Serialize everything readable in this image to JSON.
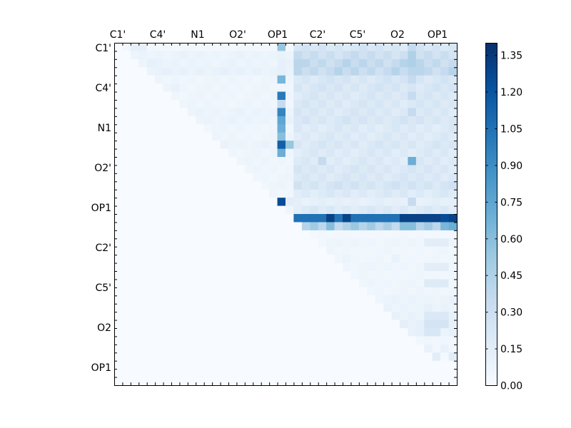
{
  "chart_data": {
    "type": "heatmap",
    "title": "",
    "xlabel": "",
    "ylabel": "",
    "x_tick_labels": [
      "C1'",
      "C4'",
      "N1",
      "O2'",
      "OP1",
      "C2'",
      "C5'",
      "O2",
      "OP1"
    ],
    "y_tick_labels": [
      "C1'",
      "C4'",
      "N1",
      "O2'",
      "OP1",
      "C2'",
      "C5'",
      "O2",
      "OP1"
    ],
    "grid_size": 42,
    "colormap": "Blues",
    "colorbar": {
      "range": [
        0.0,
        1.4
      ],
      "tick_labels": [
        "0.00",
        "0.15",
        "0.30",
        "0.45",
        "0.60",
        "0.75",
        "0.90",
        "1.05",
        "1.20",
        "1.35"
      ],
      "ticks": [
        0.0,
        0.15,
        0.3,
        0.45,
        0.6,
        0.75,
        0.9,
        1.05,
        1.2,
        1.35
      ]
    },
    "matrix_description": "upper-triangular; lower triangle = 0",
    "row_profiles": [
      {
        "row": 0,
        "base": 0.04,
        "right": 0.22,
        "peaks": {
          "2": 0.12,
          "3": 0.12,
          "20": 0.55,
          "36": 0.35
        }
      },
      {
        "row": 1,
        "base": 0.08,
        "right": 0.3,
        "peaks": {
          "20": 0.1,
          "36": 0.45
        }
      },
      {
        "row": 2,
        "base": 0.08,
        "right": 0.35,
        "peaks": {
          "4": 0.12,
          "5": 0.1,
          "20": 0.12,
          "22": 0.4,
          "36": 0.45
        }
      },
      {
        "row": 3,
        "base": 0.1,
        "right": 0.35,
        "peaks": {
          "6": 0.12,
          "20": 0.12,
          "37": 0.4
        }
      },
      {
        "row": 4,
        "base": 0.06,
        "right": 0.22,
        "peaks": {
          "20": 0.65,
          "36": 0.35
        }
      },
      {
        "row": 5,
        "base": 0.06,
        "right": 0.22,
        "peaks": {
          "7": 0.1,
          "20": 0.05
        }
      },
      {
        "row": 6,
        "base": 0.06,
        "right": 0.2,
        "peaks": {
          "20": 1.0,
          "36": 0.35
        }
      },
      {
        "row": 7,
        "base": 0.06,
        "right": 0.2,
        "peaks": {
          "20": 0.35
        }
      },
      {
        "row": 8,
        "base": 0.08,
        "right": 0.2,
        "peaks": {
          "20": 0.95,
          "36": 0.35
        }
      },
      {
        "row": 9,
        "base": 0.08,
        "right": 0.22,
        "peaks": {
          "20": 0.75
        }
      },
      {
        "row": 10,
        "base": 0.06,
        "right": 0.18,
        "peaks": {
          "20": 0.7
        }
      },
      {
        "row": 11,
        "base": 0.06,
        "right": 0.18,
        "peaks": {
          "20": 0.6
        }
      },
      {
        "row": 12,
        "base": 0.08,
        "right": 0.2,
        "peaks": {
          "20": 1.15,
          "21": 0.55
        }
      },
      {
        "row": 13,
        "base": 0.06,
        "right": 0.18,
        "peaks": {
          "20": 0.7
        }
      },
      {
        "row": 14,
        "base": 0.06,
        "right": 0.18,
        "peaks": {
          "25": 0.35,
          "36": 0.7
        }
      },
      {
        "row": 15,
        "base": 0.06,
        "right": 0.2,
        "peaks": {}
      },
      {
        "row": 16,
        "base": 0.06,
        "right": 0.2,
        "peaks": {}
      },
      {
        "row": 17,
        "base": 0.06,
        "right": 0.24,
        "peaks": {}
      },
      {
        "row": 18,
        "base": 0.05,
        "right": 0.18,
        "peaks": {}
      },
      {
        "row": 19,
        "base": 0.05,
        "right": 0.12,
        "peaks": {
          "20": 1.25,
          "21": 0.15,
          "36": 0.35
        }
      },
      {
        "row": 20,
        "base": 0.06,
        "right": 0.18,
        "peaks": {}
      },
      {
        "row": 21,
        "base": 0.0,
        "right": 1.05,
        "peaks": {
          "26": 1.3,
          "28": 1.3,
          "35": 1.3,
          "36": 1.3,
          "37": 1.3,
          "38": 1.3,
          "39": 1.3,
          "40": 1.25,
          "41": 1.3
        }
      },
      {
        "row": 22,
        "base": 0.0,
        "right": 0.45,
        "peaks": {
          "26": 0.6,
          "35": 0.6,
          "36": 0.6,
          "40": 0.65,
          "41": 0.7
        }
      },
      {
        "row": 23,
        "base": 0.0,
        "right": 0.04,
        "peaks": {}
      },
      {
        "row": 24,
        "base": 0.0,
        "right": 0.06,
        "peaks": {
          "24": 0.12,
          "38": 0.15,
          "39": 0.15,
          "40": 0.15
        }
      },
      {
        "row": 25,
        "base": 0.0,
        "right": 0.05,
        "peaks": {}
      },
      {
        "row": 26,
        "base": 0.0,
        "right": 0.05,
        "peaks": {
          "28": 0.08,
          "34": 0.1
        }
      },
      {
        "row": 27,
        "base": 0.0,
        "right": 0.06,
        "peaks": {
          "38": 0.15,
          "39": 0.15,
          "40": 0.15
        }
      },
      {
        "row": 28,
        "base": 0.0,
        "right": 0.05,
        "peaks": {}
      },
      {
        "row": 29,
        "base": 0.0,
        "right": 0.06,
        "peaks": {
          "38": 0.18,
          "39": 0.18,
          "40": 0.18
        }
      },
      {
        "row": 30,
        "base": 0.0,
        "right": 0.06,
        "peaks": {}
      },
      {
        "row": 31,
        "base": 0.0,
        "right": 0.08,
        "peaks": {}
      },
      {
        "row": 32,
        "base": 0.0,
        "right": 0.08,
        "peaks": {
          "38": 0.12
        }
      },
      {
        "row": 33,
        "base": 0.0,
        "right": 0.1,
        "peaks": {
          "38": 0.2,
          "39": 0.2,
          "40": 0.2
        }
      },
      {
        "row": 34,
        "base": 0.0,
        "right": 0.12,
        "peaks": {
          "38": 0.25,
          "39": 0.25,
          "40": 0.25
        }
      },
      {
        "row": 35,
        "base": 0.0,
        "right": 0.1,
        "peaks": {
          "38": 0.22,
          "39": 0.22
        }
      },
      {
        "row": 36,
        "base": 0.0,
        "right": 0.05,
        "peaks": {}
      },
      {
        "row": 37,
        "base": 0.0,
        "right": 0.04,
        "peaks": {
          "38": 0.1,
          "40": 0.1
        }
      },
      {
        "row": 38,
        "base": 0.0,
        "right": 0.02,
        "peaks": {
          "39": 0.15,
          "41": 0.15
        }
      },
      {
        "row": 39,
        "base": 0.0,
        "right": 0.0,
        "peaks": {}
      },
      {
        "row": 40,
        "base": 0.0,
        "right": 0.0,
        "peaks": {}
      },
      {
        "row": 41,
        "base": 0.0,
        "right": 0.0,
        "peaks": {}
      }
    ],
    "right_block_start_col": 22
  }
}
